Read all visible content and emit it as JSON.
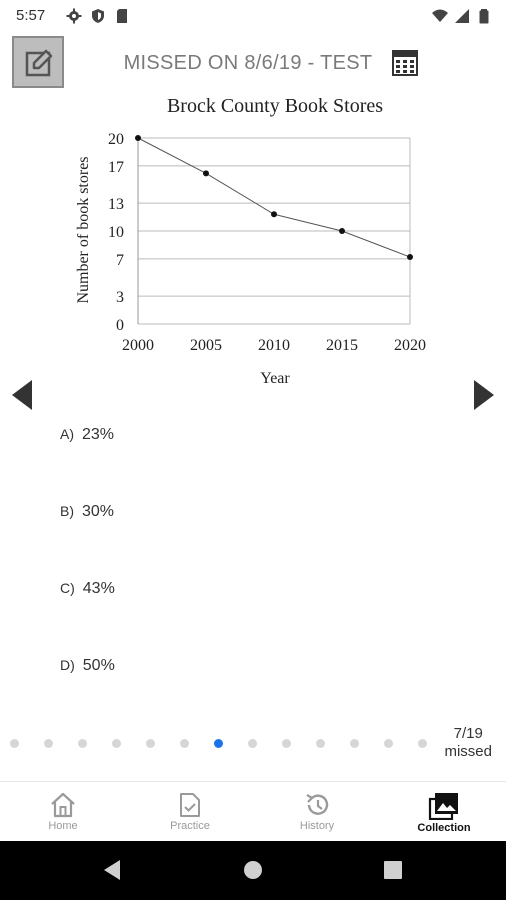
{
  "status_bar": {
    "time": "5:57"
  },
  "header": {
    "title": "MISSED ON 8/6/19 - TEST"
  },
  "chart_data": {
    "type": "line",
    "title": "Brock County Book Stores",
    "xlabel": "Year",
    "ylabel": "Number of  book stores",
    "x": [
      2000,
      2005,
      2010,
      2015,
      2020
    ],
    "series": [
      {
        "values": [
          20,
          16.2,
          11.8,
          10,
          7.2
        ]
      }
    ],
    "xticks": [
      "2000",
      "2005",
      "2010",
      "2015",
      "2020"
    ],
    "yticks": [
      0,
      3,
      7,
      10,
      13,
      17,
      20
    ],
    "ytick_labels": [
      "0",
      "3",
      "7",
      "10",
      "13",
      "17",
      "20"
    ],
    "ylim": [
      0,
      20
    ],
    "xlim": [
      2000,
      2020
    ],
    "grid": "horizontal"
  },
  "answers": [
    {
      "letter": "A)",
      "value": "23%"
    },
    {
      "letter": "B)",
      "value": "30%"
    },
    {
      "letter": "C)",
      "value": "43%"
    },
    {
      "letter": "D)",
      "value": "50%"
    }
  ],
  "pager": {
    "count": 13,
    "active_index": 6,
    "missed_number": "7/19",
    "missed_label": "missed"
  },
  "bottom_nav": [
    {
      "label": "Home",
      "icon": "home-icon",
      "active": false
    },
    {
      "label": "Practice",
      "icon": "practice-icon",
      "active": false
    },
    {
      "label": "History",
      "icon": "history-icon",
      "active": false
    },
    {
      "label": "Collection",
      "icon": "collection-icon",
      "active": true
    }
  ]
}
